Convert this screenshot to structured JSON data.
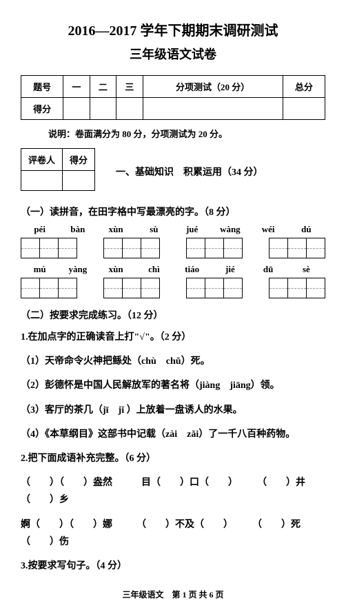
{
  "title1": "2016—2017 学年下期期末调研测试",
  "title2": "三年级语文试卷",
  "scoreTable": {
    "headers": [
      "题号",
      "一",
      "二",
      "三",
      "分项测试（20 分）",
      "总分"
    ],
    "row2": "得分"
  },
  "note": "说明：卷面满分为 80 分，分项测试为 20 分。",
  "grader": {
    "c1": "评卷人",
    "c2": "得分"
  },
  "section1": "一、基础知识　积累运用（34 分）",
  "q1": "（一）读拼音，在田字格中写最漂亮的字。（8 分）",
  "pinyin": {
    "r1": [
      "péi",
      "bàn",
      "xùn",
      "sù",
      "jué",
      "wàng",
      "wéi",
      "dú"
    ],
    "r2": [
      "mú",
      "yàng",
      "xùn",
      "chì",
      "tiáo",
      "jié",
      "dū",
      "sè"
    ]
  },
  "q2": "（二）按要求完成练习。（12 分）",
  "i2_1": "1.在加点字的正确读音上打\"√\"。（2 分）",
  "i2_1a": "（1）天帝命令火神把鲧处（chù　chǔ）死。",
  "i2_1b": "（2）彭德怀是中国人民解放军的著名将（jiàng　jiāng）领。",
  "i2_1c": "（3）客厅的茶几（jī　jǐ ）上放着一盘诱人的水果。",
  "i2_1d": "（4）《本草纲目》这部书中记载（zài　zǎi）了一千八百种药物。",
  "i2_2": "2.把下面成语补充完整。（6 分）",
  "i2_2a": "（　　）（　　）盎然　　　目（　　）口（　　）　　　（　　）井（　　）乡",
  "i2_2b": "婀（　　）（　　）娜　　　（　　）不及（　　）　　　（　　）死（　　）伤",
  "i2_3": "3.按要求写句子。（4 分）",
  "footer": "三年级语文　第 1 页 共 6 页"
}
